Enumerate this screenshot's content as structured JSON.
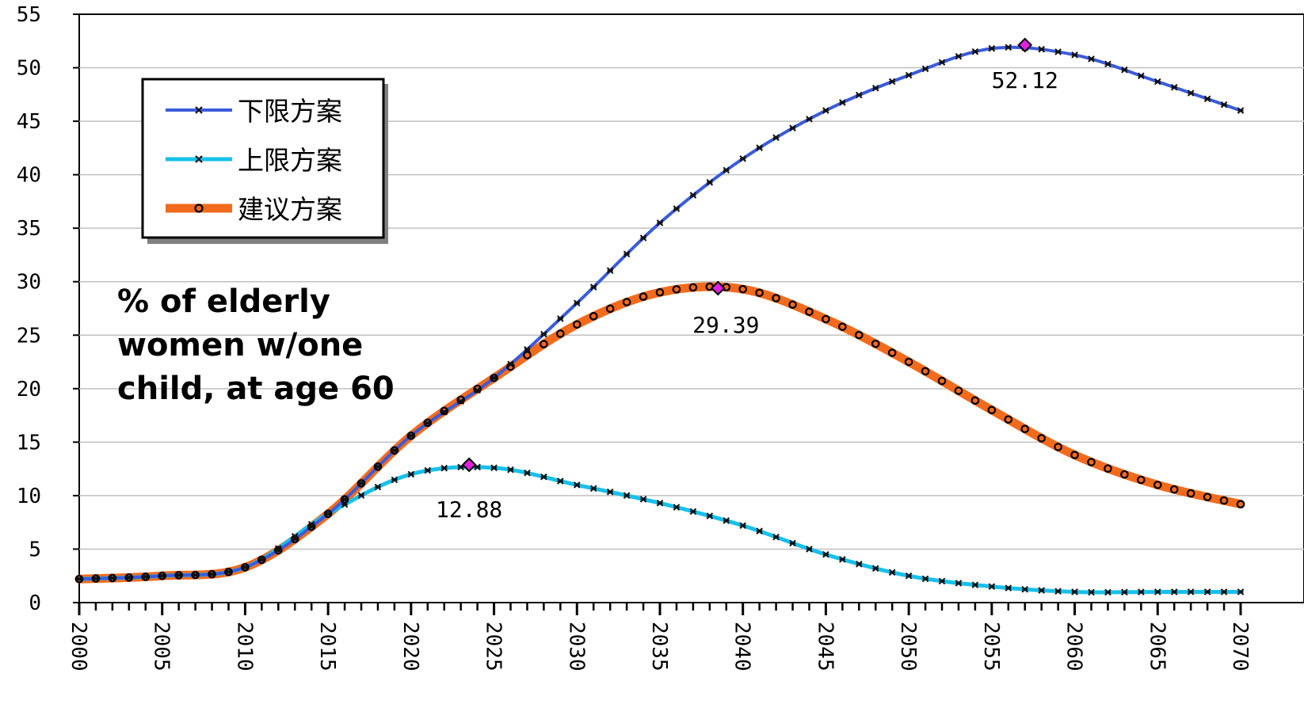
{
  "chart_data": {
    "type": "line",
    "title": "",
    "xlabel": "",
    "ylabel": "",
    "xlim": [
      2000,
      2070
    ],
    "ylim": [
      0,
      55
    ],
    "x_ticks": [
      "2000",
      "2005",
      "2010",
      "2015",
      "2020",
      "2025",
      "2030",
      "2035",
      "2040",
      "2045",
      "2050",
      "2055",
      "2060",
      "2065",
      "2070"
    ],
    "y_ticks": [
      "0",
      "5",
      "10",
      "15",
      "20",
      "25",
      "30",
      "35",
      "40",
      "45",
      "50",
      "55"
    ],
    "grid": "horizontal",
    "legend_position": "top-left",
    "annotation": [
      "% of elderly",
      "women w/one",
      "child, at age 60"
    ],
    "x": [
      2000,
      2005,
      2010,
      2015,
      2020,
      2025,
      2030,
      2035,
      2040,
      2045,
      2050,
      2055,
      2060,
      2065,
      2070
    ],
    "series": [
      {
        "name": "下限方案",
        "color": "#3b5bdb",
        "marker": "star",
        "values": [
          2.2,
          2.5,
          3.3,
          8.3,
          15.6,
          21.0,
          28.0,
          35.5,
          41.5,
          46.0,
          49.3,
          51.8,
          51.2,
          48.7,
          46.0
        ]
      },
      {
        "name": "上限方案",
        "color": "#17c0eb",
        "marker": "star",
        "values": [
          2.2,
          2.5,
          3.3,
          8.3,
          12.0,
          12.6,
          11.0,
          9.3,
          7.2,
          4.5,
          2.5,
          1.5,
          1.0,
          1.0,
          1.0
        ]
      },
      {
        "name": "建议方案",
        "color": "#f26b1d",
        "marker": "circle",
        "values": [
          2.2,
          2.5,
          3.3,
          8.3,
          15.6,
          21.0,
          26.0,
          29.0,
          29.3,
          26.5,
          22.5,
          18.0,
          13.8,
          11.0,
          9.2
        ]
      }
    ],
    "peaks": [
      {
        "x": 2057,
        "y": 52.12,
        "label": "52.12"
      },
      {
        "x": 2038.5,
        "y": 29.39,
        "label": "29.39"
      },
      {
        "x": 2023.5,
        "y": 12.88,
        "label": "12.88"
      }
    ]
  }
}
